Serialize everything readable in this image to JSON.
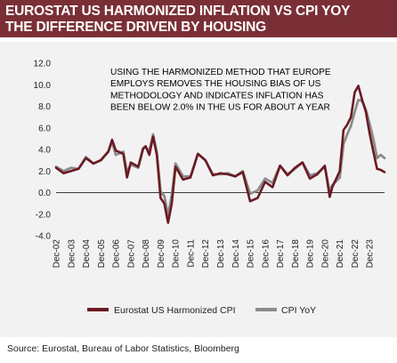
{
  "header": {
    "title_line1": "EUROSTAT US HARMONIZED INFLATION VS CPI YOY",
    "title_line2": "THE DIFFERENCE DRIVEN BY HOUSING"
  },
  "source": "Source:  Eurostat,  Bureau of Labor Statistics,  Bloomberg",
  "colors": {
    "header_bg": "#7a2f36",
    "panel_bg": "#f2f2f2",
    "harmonized": "#6b1a22",
    "cpi": "#8c8c8c"
  },
  "chart_data": {
    "type": "line",
    "title": "",
    "xlabel": "",
    "ylabel": "",
    "ylim": [
      -4.0,
      12.0
    ],
    "y_ticks": [
      "-4.0",
      "-2.0",
      "0.0",
      "2.0",
      "4.0",
      "6.0",
      "8.0",
      "10.0",
      "12.0"
    ],
    "x_tick_labels": [
      "Dec-02",
      "Dec-03",
      "Dec-04",
      "Dec-05",
      "Dec-06",
      "Dec-07",
      "Dec-08",
      "Dec-09",
      "Dec-10",
      "Dec-11",
      "Dec-12",
      "Dec-13",
      "Dec-14",
      "Dec-15",
      "Dec-16",
      "Dec-17",
      "Dec-18",
      "Dec-19",
      "Dec-20",
      "Dec-21",
      "Dec-22",
      "Dec-23"
    ],
    "grid": false,
    "legend_position": "bottom",
    "annotation": [
      "USING THE HARMONIZED METHOD THAT EUROPE",
      "EMPLOYS REMOVES THE HOUSING BIAS OF US",
      "METHODOLOGY AND INDICATES INFLATION HAS",
      "BEEN BELOW 2.0% IN THE US FOR ABOUT A YEAR"
    ],
    "x": [
      2002.0,
      2002.5,
      2003.0,
      2003.5,
      2004.0,
      2004.5,
      2005.0,
      2005.5,
      2005.75,
      2006.0,
      2006.5,
      2006.75,
      2007.0,
      2007.5,
      2007.83,
      2008.0,
      2008.25,
      2008.5,
      2008.75,
      2009.0,
      2009.25,
      2009.5,
      2009.75,
      2010.0,
      2010.5,
      2011.0,
      2011.5,
      2012.0,
      2012.5,
      2013.0,
      2013.5,
      2014.0,
      2014.5,
      2015.0,
      2015.5,
      2016.0,
      2016.5,
      2017.0,
      2017.5,
      2018.0,
      2018.5,
      2019.0,
      2019.5,
      2020.0,
      2020.33,
      2020.5,
      2021.0,
      2021.25,
      2021.5,
      2021.75,
      2022.0,
      2022.25,
      2022.5,
      2022.75,
      2023.0,
      2023.25,
      2023.5,
      2023.75,
      2024.0
    ],
    "series": [
      {
        "name": "Eurostat US Harmonized CPI",
        "color": "#6b1a22",
        "values": [
          2.3,
          1.8,
          2.0,
          2.2,
          3.2,
          2.7,
          3.0,
          3.8,
          4.9,
          3.9,
          3.6,
          1.4,
          2.8,
          2.4,
          4.1,
          4.3,
          3.5,
          5.2,
          3.5,
          -0.5,
          -1.0,
          -2.8,
          -1.0,
          2.4,
          1.2,
          1.4,
          3.6,
          3.0,
          1.6,
          1.8,
          1.7,
          1.5,
          1.9,
          -0.8,
          -0.5,
          1.0,
          0.5,
          2.5,
          1.6,
          2.3,
          2.8,
          1.3,
          1.7,
          2.5,
          -0.4,
          0.5,
          2.0,
          5.8,
          6.3,
          7.0,
          9.3,
          9.9,
          8.6,
          7.5,
          5.5,
          3.8,
          2.2,
          2.1,
          1.9
        ]
      },
      {
        "name": "CPI YoY",
        "color": "#8c8c8c",
        "values": [
          2.4,
          2.0,
          2.3,
          2.2,
          3.3,
          2.7,
          3.0,
          3.8,
          4.7,
          3.5,
          3.8,
          1.9,
          2.6,
          2.3,
          4.1,
          4.2,
          3.9,
          5.4,
          3.7,
          0.1,
          -0.3,
          -2.1,
          -0.2,
          2.7,
          1.5,
          1.5,
          3.6,
          3.0,
          1.7,
          1.7,
          1.8,
          1.5,
          2.0,
          -0.1,
          0.2,
          1.3,
          0.9,
          2.5,
          1.7,
          2.2,
          2.8,
          1.6,
          1.8,
          2.4,
          0.1,
          0.7,
          1.4,
          4.5,
          5.4,
          6.2,
          7.5,
          8.6,
          8.5,
          7.7,
          6.4,
          5.0,
          3.2,
          3.5,
          3.2
        ]
      }
    ]
  }
}
